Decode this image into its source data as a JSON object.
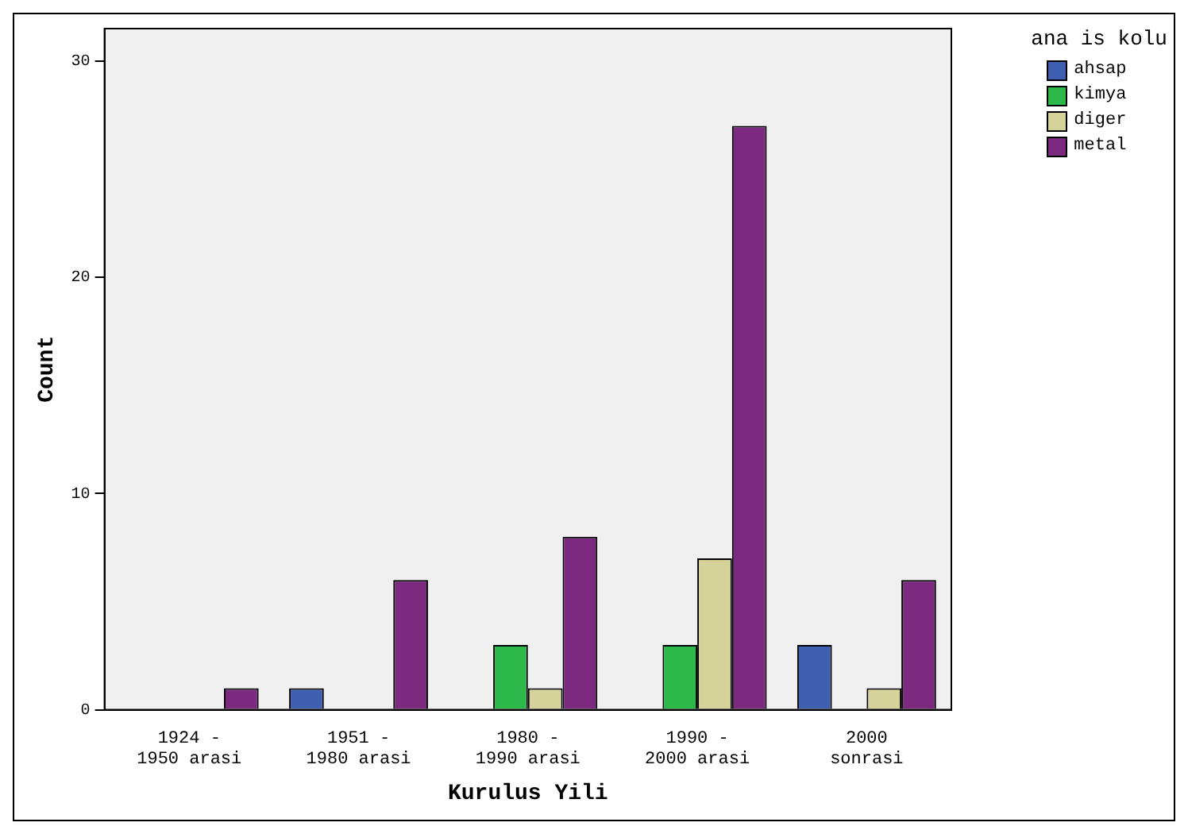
{
  "chart_data": {
    "type": "bar",
    "xlabel": "Kurulus Yili",
    "ylabel": "Count",
    "legend_title": "ana is kolu",
    "legend": "top right",
    "grid": false,
    "categories": [
      "1924 -\n1950 arasi",
      "1951 -\n1980 arasi",
      "1980 -\n1990 arasi",
      "1990 -\n2000 arasi",
      "2000\nsonrasi"
    ],
    "ylim": [
      0,
      31.5
    ],
    "yticks": [
      0,
      10,
      20,
      30
    ],
    "series": [
      {
        "name": "ahsap",
        "color": "#3f5fb0",
        "values": [
          0,
          1,
          0,
          0,
          3
        ]
      },
      {
        "name": "kimya",
        "color": "#2db84a",
        "values": [
          0,
          0,
          3,
          3,
          0
        ]
      },
      {
        "name": "diger",
        "color": "#d6d39a",
        "values": [
          0,
          0,
          1,
          7,
          1
        ]
      },
      {
        "name": "metal",
        "color": "#7b2a7f",
        "values": [
          1,
          6,
          8,
          27,
          6
        ]
      }
    ]
  }
}
